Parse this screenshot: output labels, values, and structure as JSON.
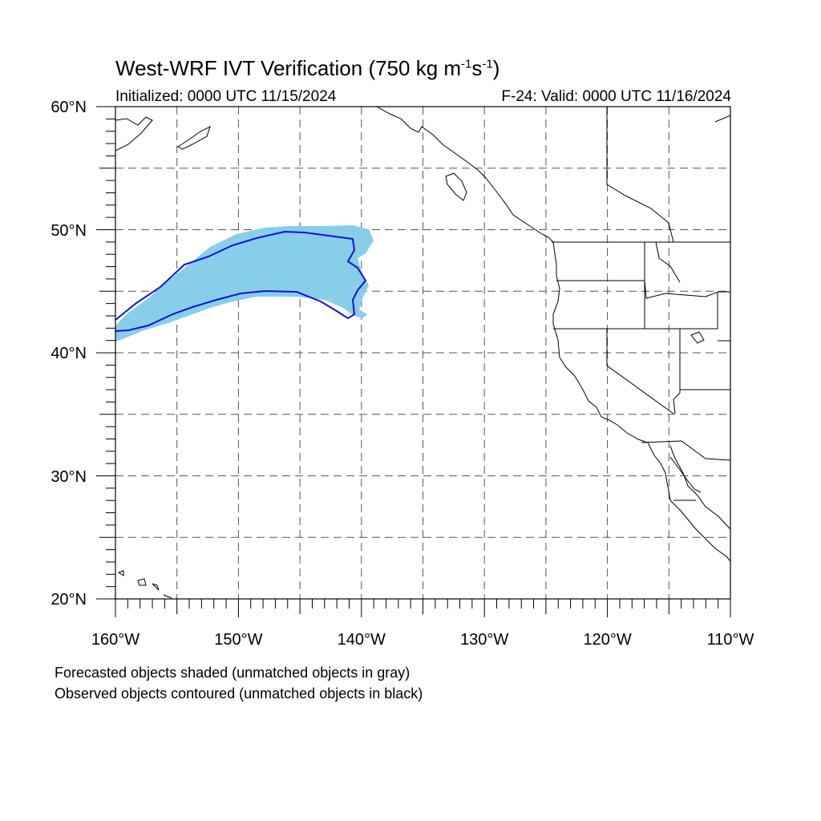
{
  "title": {
    "text": "West-WRF IVT Verification (750 kg m",
    "exp1": "-1",
    "mid": "s",
    "exp2": "-1",
    "end": ")"
  },
  "initialized": "Initialized: 0000 UTC 11/15/2024",
  "valid": "F-24: Valid: 0000 UTC 11/16/2024",
  "notes": [
    "Forecasted objects shaded (unmatched objects in gray)",
    "Observed objects contoured (unmatched objects in black)"
  ],
  "map": {
    "lat_range": [
      20,
      60
    ],
    "lon_range": [
      -160,
      -110
    ],
    "lat_labels": [
      "60°N",
      "50°N",
      "40°N",
      "30°N",
      "20°N"
    ],
    "lon_labels": [
      "160°W",
      "150°W",
      "140°W",
      "130°W",
      "120°W",
      "110°W"
    ],
    "grid_spacing_deg": 5,
    "grid_style": "dashed",
    "forecast_fill_color": "#87CEE8",
    "observed_contour_color": "#1010E0"
  }
}
